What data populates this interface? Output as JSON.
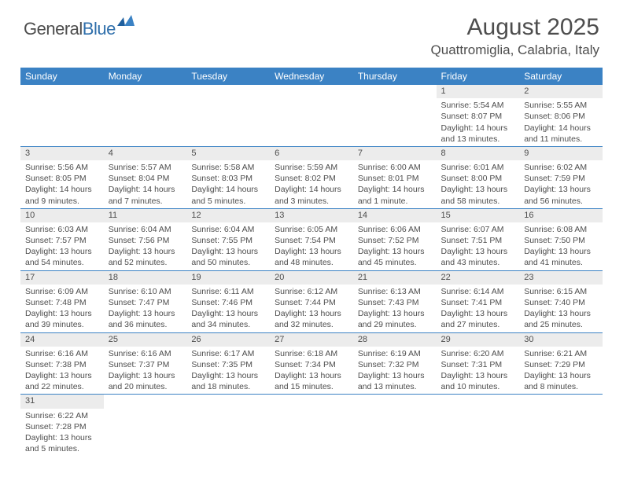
{
  "logo": {
    "text1": "General",
    "text2": "Blue"
  },
  "title": "August 2025",
  "location": "Quattromiglia, Calabria, Italy",
  "colors": {
    "header_bg": "#3b82c4",
    "header_text": "#ffffff",
    "daynum_bg": "#ececec",
    "row_border": "#3b82c4",
    "body_text": "#4d4d4d",
    "logo_gray": "#4d4d4d",
    "logo_blue": "#2f6fab"
  },
  "weekdays": [
    "Sunday",
    "Monday",
    "Tuesday",
    "Wednesday",
    "Thursday",
    "Friday",
    "Saturday"
  ],
  "weeks": [
    [
      null,
      null,
      null,
      null,
      null,
      {
        "n": "1",
        "sunrise": "Sunrise: 5:54 AM",
        "sunset": "Sunset: 8:07 PM",
        "day1": "Daylight: 14 hours",
        "day2": "and 13 minutes."
      },
      {
        "n": "2",
        "sunrise": "Sunrise: 5:55 AM",
        "sunset": "Sunset: 8:06 PM",
        "day1": "Daylight: 14 hours",
        "day2": "and 11 minutes."
      }
    ],
    [
      {
        "n": "3",
        "sunrise": "Sunrise: 5:56 AM",
        "sunset": "Sunset: 8:05 PM",
        "day1": "Daylight: 14 hours",
        "day2": "and 9 minutes."
      },
      {
        "n": "4",
        "sunrise": "Sunrise: 5:57 AM",
        "sunset": "Sunset: 8:04 PM",
        "day1": "Daylight: 14 hours",
        "day2": "and 7 minutes."
      },
      {
        "n": "5",
        "sunrise": "Sunrise: 5:58 AM",
        "sunset": "Sunset: 8:03 PM",
        "day1": "Daylight: 14 hours",
        "day2": "and 5 minutes."
      },
      {
        "n": "6",
        "sunrise": "Sunrise: 5:59 AM",
        "sunset": "Sunset: 8:02 PM",
        "day1": "Daylight: 14 hours",
        "day2": "and 3 minutes."
      },
      {
        "n": "7",
        "sunrise": "Sunrise: 6:00 AM",
        "sunset": "Sunset: 8:01 PM",
        "day1": "Daylight: 14 hours",
        "day2": "and 1 minute."
      },
      {
        "n": "8",
        "sunrise": "Sunrise: 6:01 AM",
        "sunset": "Sunset: 8:00 PM",
        "day1": "Daylight: 13 hours",
        "day2": "and 58 minutes."
      },
      {
        "n": "9",
        "sunrise": "Sunrise: 6:02 AM",
        "sunset": "Sunset: 7:59 PM",
        "day1": "Daylight: 13 hours",
        "day2": "and 56 minutes."
      }
    ],
    [
      {
        "n": "10",
        "sunrise": "Sunrise: 6:03 AM",
        "sunset": "Sunset: 7:57 PM",
        "day1": "Daylight: 13 hours",
        "day2": "and 54 minutes."
      },
      {
        "n": "11",
        "sunrise": "Sunrise: 6:04 AM",
        "sunset": "Sunset: 7:56 PM",
        "day1": "Daylight: 13 hours",
        "day2": "and 52 minutes."
      },
      {
        "n": "12",
        "sunrise": "Sunrise: 6:04 AM",
        "sunset": "Sunset: 7:55 PM",
        "day1": "Daylight: 13 hours",
        "day2": "and 50 minutes."
      },
      {
        "n": "13",
        "sunrise": "Sunrise: 6:05 AM",
        "sunset": "Sunset: 7:54 PM",
        "day1": "Daylight: 13 hours",
        "day2": "and 48 minutes."
      },
      {
        "n": "14",
        "sunrise": "Sunrise: 6:06 AM",
        "sunset": "Sunset: 7:52 PM",
        "day1": "Daylight: 13 hours",
        "day2": "and 45 minutes."
      },
      {
        "n": "15",
        "sunrise": "Sunrise: 6:07 AM",
        "sunset": "Sunset: 7:51 PM",
        "day1": "Daylight: 13 hours",
        "day2": "and 43 minutes."
      },
      {
        "n": "16",
        "sunrise": "Sunrise: 6:08 AM",
        "sunset": "Sunset: 7:50 PM",
        "day1": "Daylight: 13 hours",
        "day2": "and 41 minutes."
      }
    ],
    [
      {
        "n": "17",
        "sunrise": "Sunrise: 6:09 AM",
        "sunset": "Sunset: 7:48 PM",
        "day1": "Daylight: 13 hours",
        "day2": "and 39 minutes."
      },
      {
        "n": "18",
        "sunrise": "Sunrise: 6:10 AM",
        "sunset": "Sunset: 7:47 PM",
        "day1": "Daylight: 13 hours",
        "day2": "and 36 minutes."
      },
      {
        "n": "19",
        "sunrise": "Sunrise: 6:11 AM",
        "sunset": "Sunset: 7:46 PM",
        "day1": "Daylight: 13 hours",
        "day2": "and 34 minutes."
      },
      {
        "n": "20",
        "sunrise": "Sunrise: 6:12 AM",
        "sunset": "Sunset: 7:44 PM",
        "day1": "Daylight: 13 hours",
        "day2": "and 32 minutes."
      },
      {
        "n": "21",
        "sunrise": "Sunrise: 6:13 AM",
        "sunset": "Sunset: 7:43 PM",
        "day1": "Daylight: 13 hours",
        "day2": "and 29 minutes."
      },
      {
        "n": "22",
        "sunrise": "Sunrise: 6:14 AM",
        "sunset": "Sunset: 7:41 PM",
        "day1": "Daylight: 13 hours",
        "day2": "and 27 minutes."
      },
      {
        "n": "23",
        "sunrise": "Sunrise: 6:15 AM",
        "sunset": "Sunset: 7:40 PM",
        "day1": "Daylight: 13 hours",
        "day2": "and 25 minutes."
      }
    ],
    [
      {
        "n": "24",
        "sunrise": "Sunrise: 6:16 AM",
        "sunset": "Sunset: 7:38 PM",
        "day1": "Daylight: 13 hours",
        "day2": "and 22 minutes."
      },
      {
        "n": "25",
        "sunrise": "Sunrise: 6:16 AM",
        "sunset": "Sunset: 7:37 PM",
        "day1": "Daylight: 13 hours",
        "day2": "and 20 minutes."
      },
      {
        "n": "26",
        "sunrise": "Sunrise: 6:17 AM",
        "sunset": "Sunset: 7:35 PM",
        "day1": "Daylight: 13 hours",
        "day2": "and 18 minutes."
      },
      {
        "n": "27",
        "sunrise": "Sunrise: 6:18 AM",
        "sunset": "Sunset: 7:34 PM",
        "day1": "Daylight: 13 hours",
        "day2": "and 15 minutes."
      },
      {
        "n": "28",
        "sunrise": "Sunrise: 6:19 AM",
        "sunset": "Sunset: 7:32 PM",
        "day1": "Daylight: 13 hours",
        "day2": "and 13 minutes."
      },
      {
        "n": "29",
        "sunrise": "Sunrise: 6:20 AM",
        "sunset": "Sunset: 7:31 PM",
        "day1": "Daylight: 13 hours",
        "day2": "and 10 minutes."
      },
      {
        "n": "30",
        "sunrise": "Sunrise: 6:21 AM",
        "sunset": "Sunset: 7:29 PM",
        "day1": "Daylight: 13 hours",
        "day2": "and 8 minutes."
      }
    ],
    [
      {
        "n": "31",
        "sunrise": "Sunrise: 6:22 AM",
        "sunset": "Sunset: 7:28 PM",
        "day1": "Daylight: 13 hours",
        "day2": "and 5 minutes."
      },
      null,
      null,
      null,
      null,
      null,
      null
    ]
  ]
}
